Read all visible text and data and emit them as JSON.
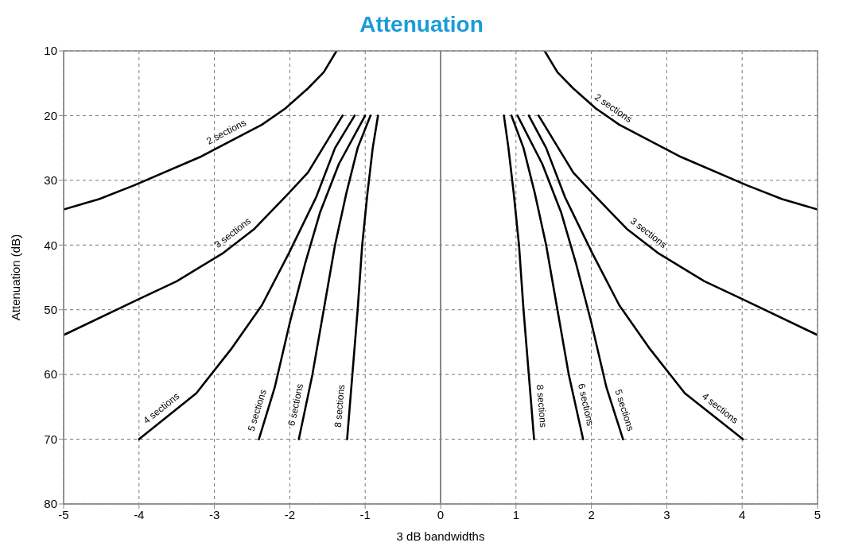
{
  "chart_data": {
    "type": "line",
    "title": "Attenuation",
    "xlabel": "3 dB bandwidths",
    "ylabel": "Attenuation (dB)",
    "xlim": [
      -5,
      5
    ],
    "xticks": [
      -5,
      -4,
      -3,
      -2,
      -1,
      0,
      1,
      2,
      3,
      4,
      5
    ],
    "ylim": [
      80,
      10
    ],
    "yticks": [
      10,
      20,
      30,
      40,
      50,
      60,
      70,
      80
    ],
    "grid": true,
    "marker": "none",
    "line_style": "solid",
    "ref_lines": [
      {
        "axis": "x",
        "value": 0,
        "color": "#888888",
        "line_style": "solid"
      }
    ],
    "series": [
      {
        "name": "2 sections",
        "color": "#000000",
        "x": [
          -5,
          -4.53,
          -4.07,
          -3.19,
          -2.37,
          -2.06,
          -1.76,
          -1.55,
          -1.38
        ],
        "values": [
          34.5,
          32.9,
          30.8,
          26.4,
          21.4,
          18.9,
          15.8,
          13.3,
          10
        ]
      },
      {
        "name": "3 sections",
        "color": "#000000",
        "x": [
          -5,
          -4.01,
          -3.5,
          -2.88,
          -2.47,
          -2.04,
          -1.76,
          -1.3
        ],
        "values": [
          53.9,
          48.4,
          45.6,
          41.2,
          37.5,
          32.3,
          28.8,
          20
        ]
      },
      {
        "name": "4 sections",
        "color": "#000000",
        "x": [
          -4,
          -3.24,
          -2.78,
          -2.37,
          -2.01,
          -1.65,
          -1.4,
          -1.14
        ],
        "values": [
          70,
          62.9,
          56.1,
          49.3,
          41.2,
          32.6,
          25,
          20
        ]
      },
      {
        "name": "5 sections",
        "color": "#000000",
        "x": [
          -2.41,
          -2.2,
          -2,
          -1.8,
          -1.6,
          -1.35,
          -1
        ],
        "values": [
          70,
          62,
          52,
          43,
          35,
          27.5,
          20
        ]
      },
      {
        "name": "6 sections",
        "color": "#000000",
        "x": [
          -1.88,
          -1.7,
          -1.55,
          -1.4,
          -1.25,
          -1.1,
          -0.93
        ],
        "values": [
          70,
          60,
          50,
          40,
          32,
          25,
          20
        ]
      },
      {
        "name": "8 sections",
        "color": "#000000",
        "x": [
          -1.24,
          -1.17,
          -1.1,
          -1.04,
          -0.97,
          -0.9,
          -0.83
        ],
        "values": [
          70,
          60,
          50,
          40,
          32,
          25,
          20
        ]
      },
      {
        "name": "2 sections",
        "color": "#000000",
        "x": [
          1.38,
          1.55,
          1.76,
          2.06,
          2.37,
          3.19,
          4.07,
          4.53,
          5
        ],
        "values": [
          10,
          13.3,
          15.8,
          18.9,
          21.4,
          26.4,
          30.8,
          32.9,
          34.5
        ]
      },
      {
        "name": "3 sections",
        "color": "#000000",
        "x": [
          1.3,
          1.76,
          2.04,
          2.47,
          2.88,
          3.5,
          4.01,
          5
        ],
        "values": [
          20,
          28.8,
          32.3,
          37.5,
          41.2,
          45.6,
          48.4,
          53.9
        ]
      },
      {
        "name": "4 sections",
        "color": "#000000",
        "x": [
          1.17,
          1.4,
          1.65,
          2.01,
          2.37,
          2.78,
          3.24,
          4.01
        ],
        "values": [
          20,
          25,
          32.6,
          41.2,
          49.3,
          56.1,
          62.9,
          70
        ]
      },
      {
        "name": "5 sections",
        "color": "#000000",
        "x": [
          1.02,
          1.35,
          1.6,
          1.8,
          2,
          2.2,
          2.42
        ],
        "values": [
          20,
          27.5,
          35,
          43,
          52,
          62,
          70
        ]
      },
      {
        "name": "6 sections",
        "color": "#000000",
        "x": [
          0.94,
          1.1,
          1.25,
          1.4,
          1.55,
          1.7,
          1.89
        ],
        "values": [
          20,
          25,
          32,
          40,
          50,
          60,
          70
        ]
      },
      {
        "name": "8 sections",
        "color": "#000000",
        "x": [
          0.84,
          0.9,
          0.97,
          1.04,
          1.1,
          1.17,
          1.24
        ],
        "values": [
          20,
          25,
          32,
          40,
          50,
          60,
          70
        ]
      }
    ]
  }
}
